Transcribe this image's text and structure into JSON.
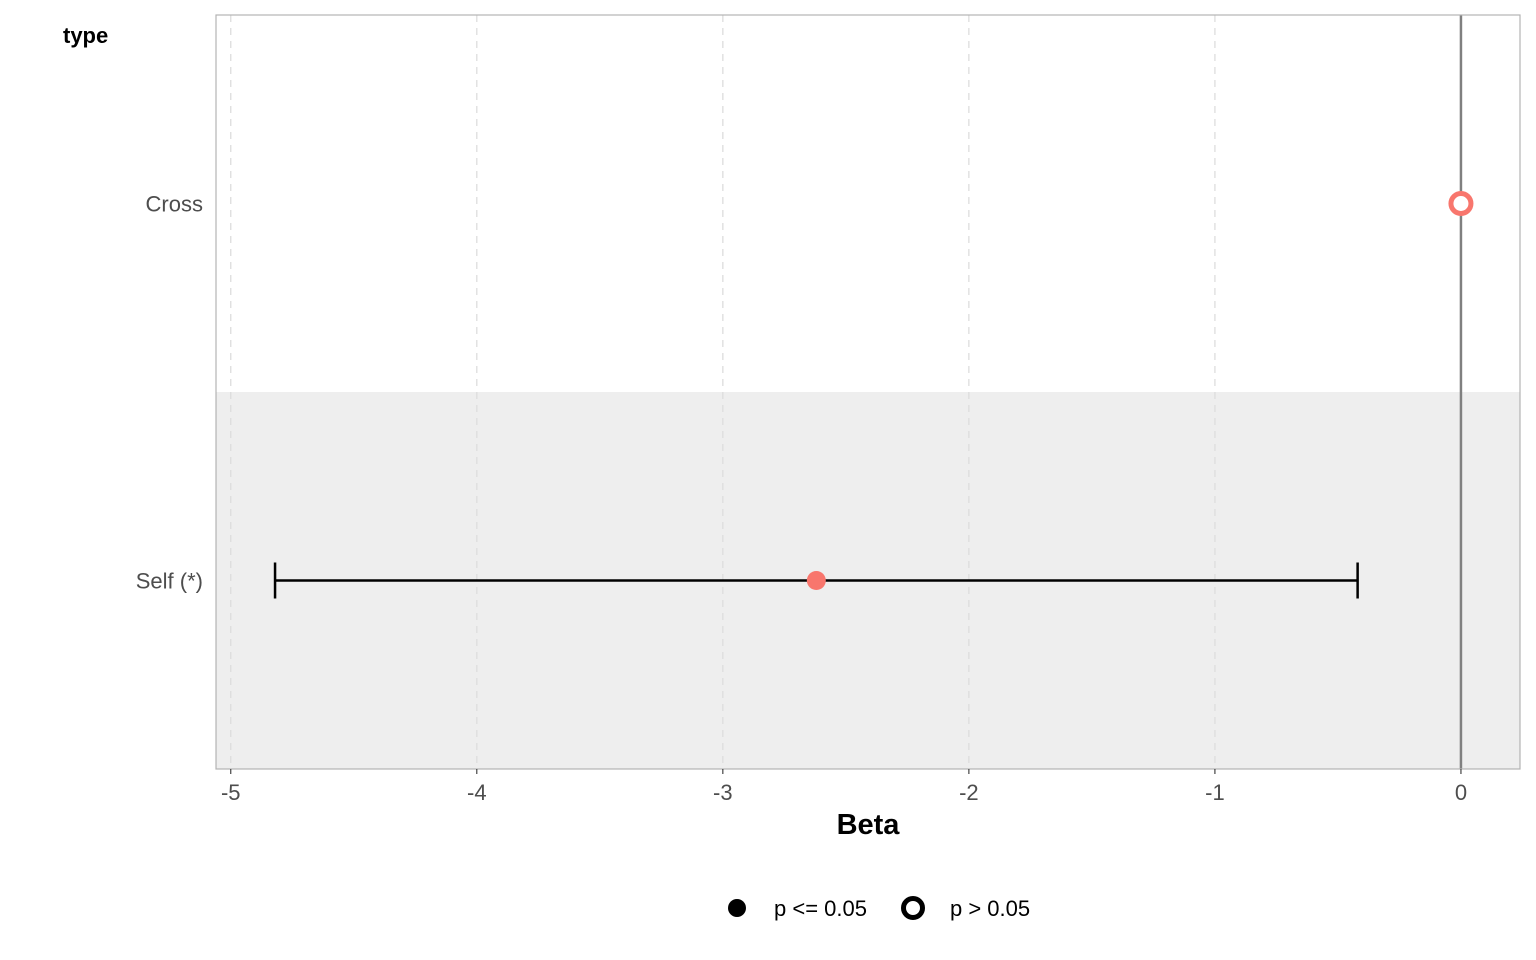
{
  "chart_data": {
    "type": "scatter",
    "subtype": "forest-plot",
    "row_header": "type",
    "xlabel": "Beta",
    "ylabel": "",
    "xlim": [
      -5.06,
      0.24
    ],
    "x_ticks": [
      -5,
      -4,
      -3,
      -2,
      -1,
      0
    ],
    "x_tick_labels": [
      "-5",
      "-4",
      "-3",
      "-2",
      "-1",
      "0"
    ],
    "grid": "vertical dashed",
    "reference_line": 0,
    "categories": [
      "Cross",
      "Self (*)"
    ],
    "points": [
      {
        "category": "Cross",
        "estimate": 0.0,
        "ci_low": null,
        "ci_high": null,
        "significant": false
      },
      {
        "category": "Self (*)",
        "estimate": -2.62,
        "ci_low": -4.82,
        "ci_high": -0.42,
        "significant": true
      }
    ],
    "legend": {
      "position": "bottom",
      "items": [
        {
          "label": "p <= 0.05",
          "shape": "filled-circle"
        },
        {
          "label": "p > 0.05",
          "shape": "open-circle"
        }
      ]
    },
    "colors": {
      "point": "#f8766d",
      "errorbar": "#000000",
      "reference_line": "#808080",
      "band_shade": "#eeeeee",
      "grid": "#dddddd",
      "panel_border": "#b3b3b3"
    }
  }
}
